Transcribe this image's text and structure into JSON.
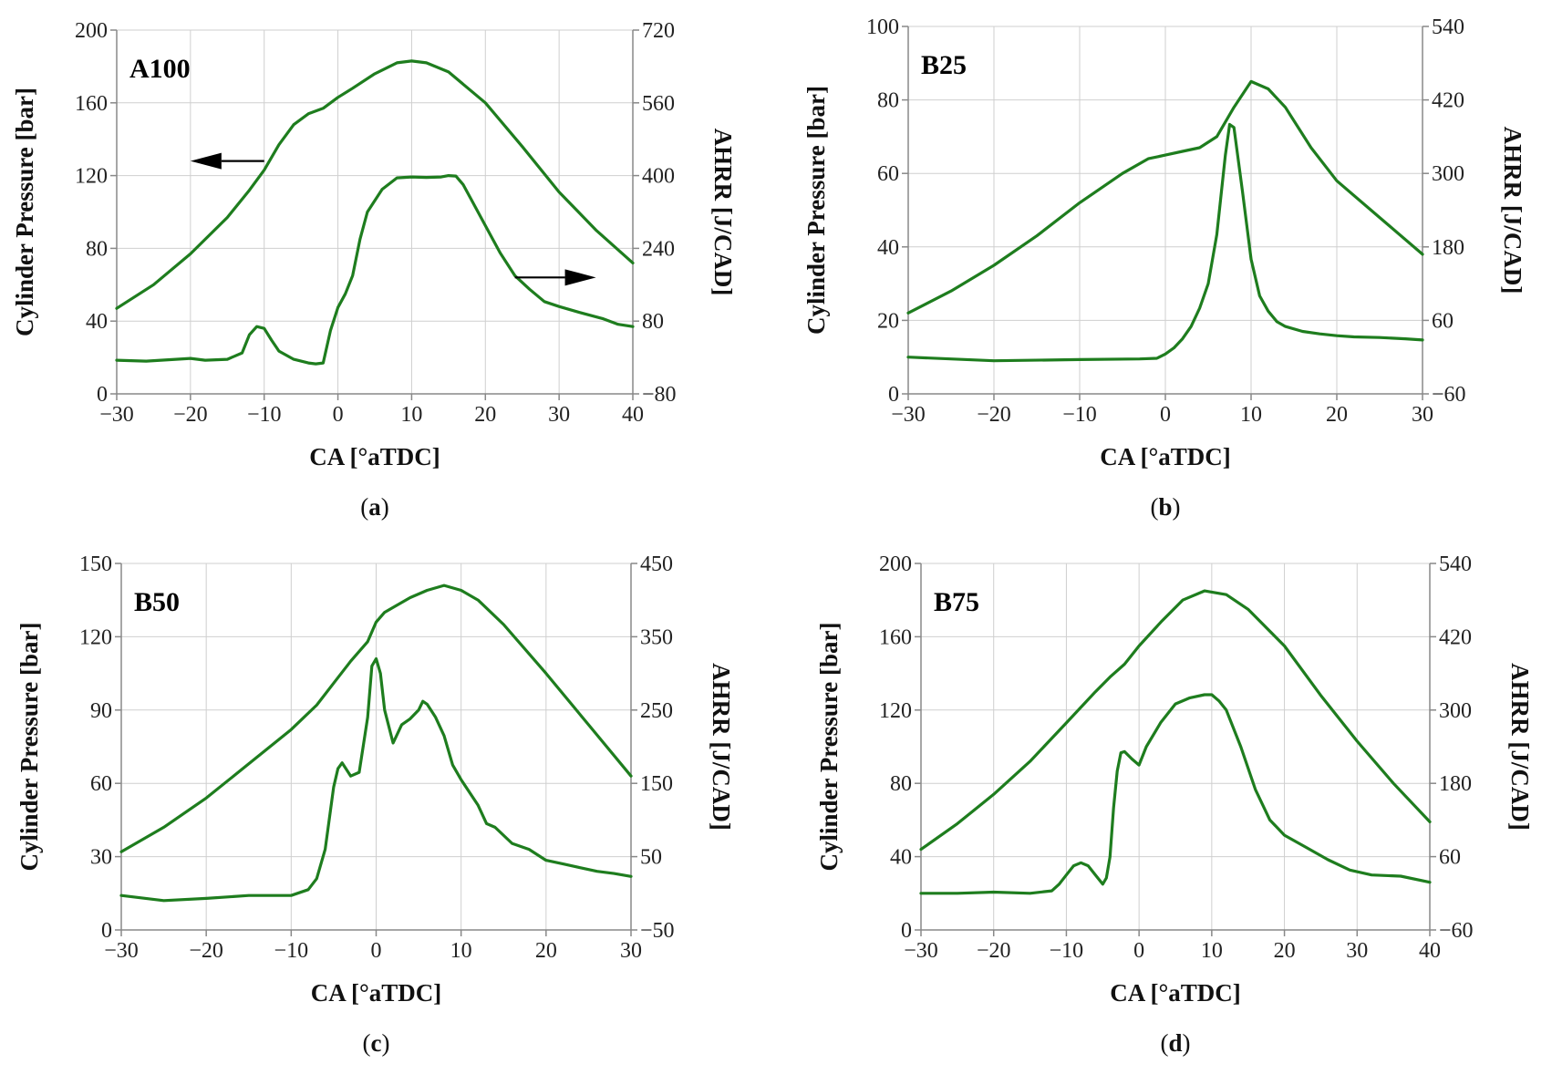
{
  "figure": {
    "line_color": "#1e7d1e",
    "grid_color": "#cfcfcf",
    "axis_color": "#888888"
  },
  "chart_data": [
    {
      "panel": "a",
      "caption_letter": "a",
      "type": "line",
      "title": "A100",
      "xlabel": "CA [°aTDC]",
      "ylabel": "Cylinder Pressure [bar]",
      "y2label": "AHRR [J/CAD]",
      "xlim": [
        -30,
        40
      ],
      "xticks": [
        -30,
        -20,
        -10,
        0,
        10,
        20,
        30,
        40
      ],
      "ylim": [
        0,
        200
      ],
      "yticks": [
        0,
        40,
        80,
        120,
        160,
        200
      ],
      "y2lim": [
        -80,
        720
      ],
      "y2ticks": [
        -80,
        80,
        240,
        400,
        560,
        720
      ],
      "arrows": [
        {
          "direction": "left",
          "from": [
            -10,
            128
          ],
          "to": [
            -20,
            128
          ]
        },
        {
          "direction": "right",
          "from": [
            24,
            64
          ],
          "to": [
            35,
            64
          ]
        }
      ],
      "series": [
        {
          "name": "Cylinder Pressure",
          "axis": "left",
          "x": [
            -30,
            -25,
            -20,
            -15,
            -12,
            -10,
            -8,
            -6,
            -4,
            -2,
            0,
            2,
            5,
            8,
            10,
            12,
            15,
            20,
            25,
            30,
            35,
            40
          ],
          "y": [
            47,
            60,
            77,
            97,
            112,
            123,
            137,
            148,
            154,
            157,
            163,
            168,
            176,
            182,
            183,
            182,
            177,
            160,
            136,
            111,
            90,
            72
          ]
        },
        {
          "name": "AHRR",
          "axis": "right",
          "x": [
            -30,
            -26,
            -22,
            -20,
            -18,
            -15,
            -13,
            -12,
            -11,
            -10,
            -9,
            -8,
            -6,
            -4,
            -3,
            -2,
            -1,
            0,
            1,
            2,
            3,
            4,
            6,
            8,
            10,
            12,
            14,
            15,
            16,
            17,
            18,
            20,
            22,
            24,
            26,
            28,
            30,
            33,
            36,
            38,
            40
          ],
          "y": [
            -6,
            -8,
            -4,
            -2,
            -6,
            -4,
            10,
            50,
            68,
            64,
            38,
            14,
            -4,
            -12,
            -14,
            -12,
            60,
            110,
            140,
            180,
            260,
            320,
            370,
            395,
            397,
            396,
            397,
            400,
            399,
            380,
            350,
            290,
            230,
            180,
            150,
            123,
            112,
            98,
            85,
            73,
            68
          ]
        }
      ]
    },
    {
      "panel": "b",
      "caption_letter": "b",
      "type": "line",
      "title": "B25",
      "xlabel": "CA [°aTDC]",
      "ylabel": "Cylinder Pressure [bar]",
      "y2label": "AHRR [J/CAD]",
      "xlim": [
        -30,
        30
      ],
      "xticks": [
        -30,
        -20,
        -10,
        0,
        10,
        20,
        30
      ],
      "ylim": [
        0,
        100
      ],
      "yticks": [
        0,
        20,
        40,
        60,
        80,
        100
      ],
      "y2lim": [
        -60,
        540
      ],
      "y2ticks": [
        -60,
        60,
        180,
        300,
        420,
        540
      ],
      "series": [
        {
          "name": "Cylinder Pressure",
          "axis": "left",
          "x": [
            -30,
            -25,
            -20,
            -15,
            -10,
            -5,
            -2,
            0,
            2,
            4,
            6,
            8,
            10,
            12,
            14,
            17,
            20,
            25,
            30
          ],
          "y": [
            22,
            28,
            35,
            43,
            52,
            60,
            64,
            65,
            66,
            67,
            70,
            78,
            85,
            83,
            78,
            67,
            58,
            48,
            38
          ]
        },
        {
          "name": "AHRR",
          "axis": "right",
          "x": [
            -30,
            -20,
            -10,
            -3,
            -1,
            0,
            1,
            2,
            3,
            4,
            5,
            6,
            7,
            7.5,
            8,
            9,
            10,
            11,
            12,
            13,
            14,
            16,
            18,
            20,
            22,
            25,
            28,
            30
          ],
          "y": [
            0,
            -6,
            -4,
            -3,
            -2,
            5,
            15,
            30,
            50,
            80,
            120,
            200,
            330,
            380,
            375,
            270,
            160,
            100,
            75,
            58,
            50,
            42,
            38,
            35,
            33,
            32,
            30,
            28
          ]
        }
      ]
    },
    {
      "panel": "c",
      "caption_letter": "c",
      "type": "line",
      "title": "B50",
      "xlabel": "CA [°aTDC]",
      "ylabel": "Cylinder Pressure [bar]",
      "y2label": "AHRR [J/CAD]",
      "xlim": [
        -30,
        30
      ],
      "xticks": [
        -30,
        -20,
        -10,
        0,
        10,
        20,
        30
      ],
      "ylim": [
        0,
        150
      ],
      "yticks": [
        0,
        30,
        60,
        90,
        120,
        150
      ],
      "y2lim": [
        -50,
        450
      ],
      "y2ticks": [
        -50,
        50,
        150,
        250,
        350,
        450
      ],
      "series": [
        {
          "name": "Cylinder Pressure",
          "axis": "left",
          "x": [
            -30,
            -25,
            -20,
            -15,
            -10,
            -7,
            -5,
            -3,
            -1,
            0,
            1,
            2,
            4,
            6,
            8,
            10,
            12,
            15,
            20,
            25,
            30
          ],
          "y": [
            32,
            42,
            54,
            68,
            82,
            92,
            101,
            110,
            118,
            126,
            130,
            132,
            136,
            139,
            141,
            139,
            135,
            125,
            105,
            84,
            63
          ]
        },
        {
          "name": "AHRR",
          "axis": "right",
          "x": [
            -30,
            -25,
            -20,
            -15,
            -10,
            -8,
            -7,
            -6,
            -5,
            -4.5,
            -4,
            -3,
            -2,
            -1,
            -0.5,
            0,
            0.5,
            1,
            2,
            3,
            4,
            5,
            5.5,
            6,
            7,
            8,
            9,
            10,
            12,
            13,
            14,
            16,
            18,
            20,
            22,
            24,
            26,
            28,
            30
          ],
          "y": [
            -3,
            -10,
            -7,
            -3,
            -3,
            5,
            20,
            60,
            145,
            170,
            178,
            160,
            165,
            240,
            310,
            320,
            300,
            250,
            205,
            230,
            238,
            250,
            262,
            258,
            240,
            215,
            175,
            155,
            120,
            95,
            90,
            68,
            60,
            45,
            40,
            35,
            30,
            27,
            23
          ]
        }
      ]
    },
    {
      "panel": "d",
      "caption_letter": "d",
      "type": "line",
      "title": "B75",
      "xlabel": "CA [°aTDC]",
      "ylabel": "Cylinder Pressure [bar]",
      "y2label": "AHRR [J/CAD]",
      "xlim": [
        -30,
        40
      ],
      "xticks": [
        -30,
        -20,
        -10,
        0,
        10,
        20,
        30,
        40
      ],
      "ylim": [
        0,
        200
      ],
      "yticks": [
        0,
        40,
        80,
        120,
        160,
        200
      ],
      "y2lim": [
        -60,
        540
      ],
      "y2ticks": [
        -60,
        60,
        180,
        300,
        420,
        540
      ],
      "series": [
        {
          "name": "Cylinder Pressure",
          "axis": "left",
          "x": [
            -30,
            -25,
            -20,
            -15,
            -10,
            -6,
            -4,
            -2,
            0,
            3,
            6,
            9,
            12,
            15,
            20,
            25,
            30,
            35,
            40
          ],
          "y": [
            44,
            58,
            74,
            92,
            113,
            130,
            138,
            145,
            155,
            168,
            180,
            185,
            183,
            175,
            155,
            128,
            103,
            80,
            59
          ]
        },
        {
          "name": "AHRR",
          "axis": "right",
          "x": [
            -30,
            -25,
            -20,
            -15,
            -12,
            -11,
            -10,
            -9,
            -8,
            -7,
            -6,
            -5,
            -4.5,
            -4,
            -3.5,
            -3,
            -2.5,
            -2,
            -1,
            0,
            1,
            3,
            5,
            7,
            9,
            10,
            11,
            12,
            14,
            16,
            18,
            20,
            23,
            26,
            29,
            32,
            36,
            40
          ],
          "y": [
            0,
            0,
            2,
            0,
            4,
            15,
            30,
            45,
            50,
            45,
            30,
            15,
            25,
            60,
            140,
            200,
            230,
            232,
            220,
            210,
            240,
            280,
            310,
            320,
            325,
            325,
            315,
            300,
            240,
            170,
            120,
            95,
            75,
            55,
            38,
            30,
            28,
            18
          ]
        }
      ]
    }
  ]
}
